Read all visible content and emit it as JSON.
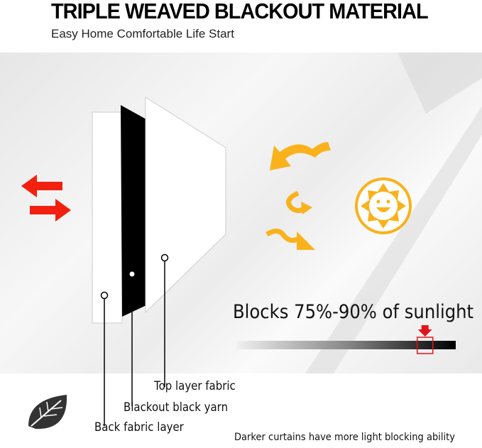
{
  "header": {
    "title": "TRIPLE WEAVED BLACKOUT MATERIAL",
    "subtitle": "Easy Home Comfortable Life Start"
  },
  "layers": [
    {
      "label": "Top layer fabric"
    },
    {
      "label": "Blackout black yarn"
    },
    {
      "label": "Back fabric layer"
    }
  ],
  "sunlight": {
    "label": "Blocks 75%-90% of sunlight",
    "marker_level": 0.86
  },
  "footer_note": "Darker curtains have more light blocking ability",
  "colors": {
    "arrow_red": "#f2200f",
    "arrow_orange": "#f9b21c",
    "sun": "#f9b21c",
    "marker": "#e2141b"
  },
  "icons": [
    "swap-arrows-icon",
    "sun-smile-icon",
    "wavy-arrow-icon",
    "leaf-icon",
    "down-arrow-icon"
  ]
}
